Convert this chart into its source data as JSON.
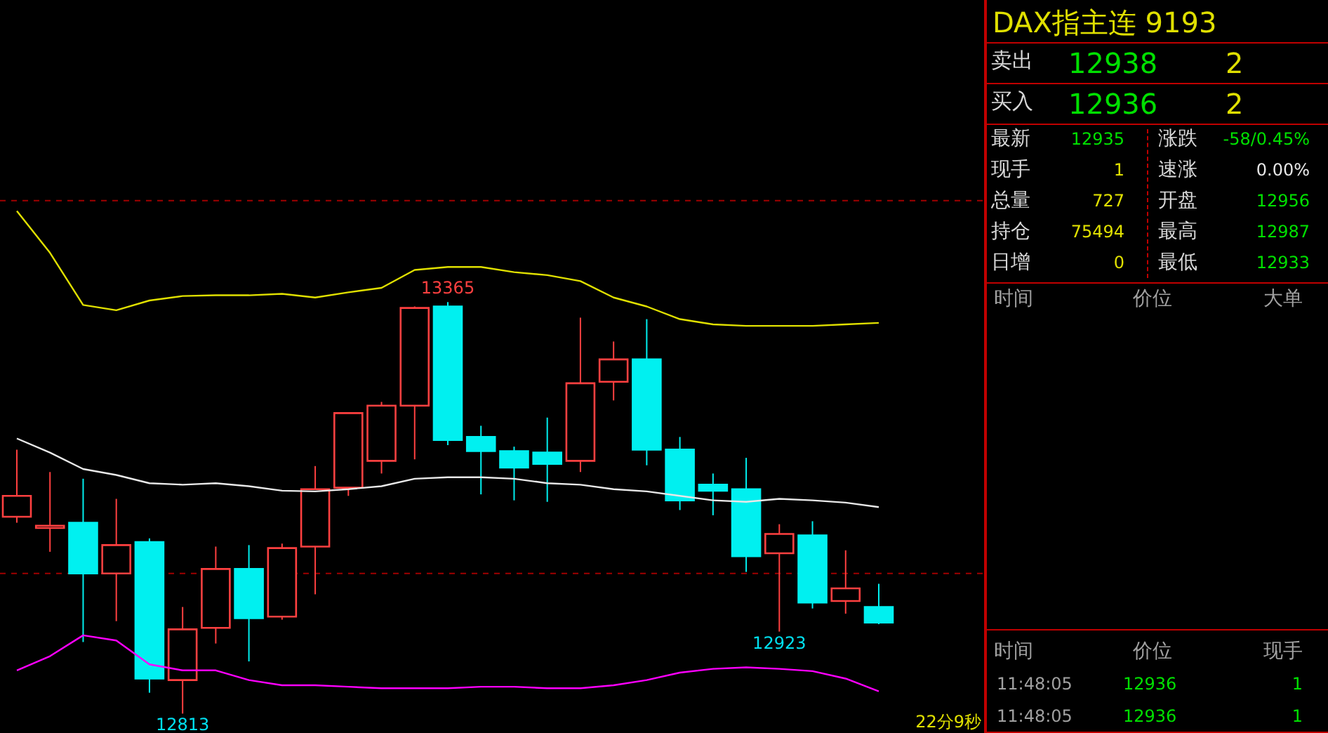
{
  "chart_data": [
    {
      "type": "candlestick",
      "categories": [
        null,
        null,
        null,
        null,
        null,
        null,
        null,
        null,
        null,
        null,
        null,
        null,
        null,
        null,
        null,
        null,
        null,
        null,
        null,
        null,
        null,
        null,
        null,
        null,
        null,
        null,
        null
      ],
      "ohlc": [
        [
          13077,
          13167,
          13069,
          13105
        ],
        [
          13062,
          13137,
          13030,
          13065
        ],
        [
          13069,
          13128,
          12909,
          13001
        ],
        [
          13001,
          13101,
          12937,
          13039
        ],
        [
          13043,
          13048,
          12841,
          12860
        ],
        [
          12858,
          12956,
          12813,
          12926
        ],
        [
          12928,
          13037,
          12907,
          13007
        ],
        [
          13007,
          13039,
          12883,
          12941
        ],
        [
          12943,
          13041,
          12939,
          13035
        ],
        [
          13037,
          13145,
          12973,
          13114
        ],
        [
          13116,
          13216,
          13105,
          13216
        ],
        [
          13152,
          13231,
          13135,
          13226
        ],
        [
          13226,
          13359,
          13154,
          13357
        ],
        [
          13359,
          13365,
          13173,
          13180
        ],
        [
          13184,
          13199,
          13107,
          13165
        ],
        [
          13165,
          13171,
          13099,
          13143
        ],
        [
          13163,
          13210,
          13097,
          13148
        ],
        [
          13152,
          13344,
          13137,
          13256
        ],
        [
          13258,
          13312,
          13233,
          13288
        ],
        [
          13288,
          13342,
          13146,
          13167
        ],
        [
          13167,
          13184,
          13086,
          13099
        ],
        [
          13120,
          13135,
          13079,
          13112
        ],
        [
          13114,
          13156,
          13003,
          13024
        ],
        [
          13028,
          13067,
          12923,
          13054
        ],
        [
          13052,
          13071,
          12954,
          12962
        ],
        [
          12964,
          13032,
          12947,
          12981
        ],
        [
          12956,
          12987,
          12933,
          12935
        ]
      ],
      "series": [
        {
          "type": "line",
          "color": "#e0e000",
          "values": [
            13487,
            13431,
            13361,
            13354,
            13367,
            13373,
            13374,
            13374,
            13376,
            13371,
            13378,
            13384,
            13408,
            13412,
            13412,
            13405,
            13401,
            13393,
            13371,
            13359,
            13342,
            13335,
            13333,
            13333,
            13333,
            13335,
            13337
          ]
        },
        {
          "type": "line",
          "color": "#e8e8e8",
          "values": [
            13182,
            13163,
            13141,
            13133,
            13122,
            13120,
            13122,
            13118,
            13112,
            13111,
            13114,
            13118,
            13128,
            13130,
            13130,
            13128,
            13122,
            13120,
            13114,
            13111,
            13105,
            13099,
            13097,
            13101,
            13099,
            13096,
            13090
          ]
        },
        {
          "type": "line",
          "color": "#ff00ff",
          "values": [
            12871,
            12890,
            12918,
            12911,
            12879,
            12871,
            12871,
            12858,
            12851,
            12851,
            12849,
            12847,
            12847,
            12847,
            12849,
            12849,
            12847,
            12847,
            12851,
            12858,
            12868,
            12873,
            12875,
            12873,
            12870,
            12860,
            12843
          ]
        }
      ],
      "ylim": [
        12787,
        13770
      ],
      "ref_lines": [
        {
          "axis": "y",
          "value": 13501,
          "color": "#a00000",
          "line_style": "dashed"
        },
        {
          "axis": "y",
          "value": 13001,
          "color": "#a00000",
          "line_style": "dashed"
        }
      ],
      "annotations": [
        {
          "text": "13365",
          "y": 13365
        },
        {
          "text": "12813",
          "y": 12813
        },
        {
          "text": "12923",
          "y": 12923
        },
        "22分9秒"
      ]
    },
    {
      "type": "other",
      "title": "DAX指主连  9193",
      "annotations": [
        "卖出",
        "12938",
        "2",
        "买入",
        "12936",
        "2",
        "最新",
        "12935",
        "涨跌",
        "-58/0.45%",
        "现手",
        "1",
        "速涨",
        "0.00%",
        "总量",
        "727",
        "开盘",
        "12956",
        "持仓",
        "75494",
        "最高",
        "12987",
        "日增",
        "0",
        "最低",
        "12933",
        "时间",
        "价位",
        "大单",
        "时间",
        "价位",
        "现手",
        "11:48:05",
        "12936",
        "1",
        "11:48:05",
        "12936",
        "1"
      ]
    }
  ]
}
